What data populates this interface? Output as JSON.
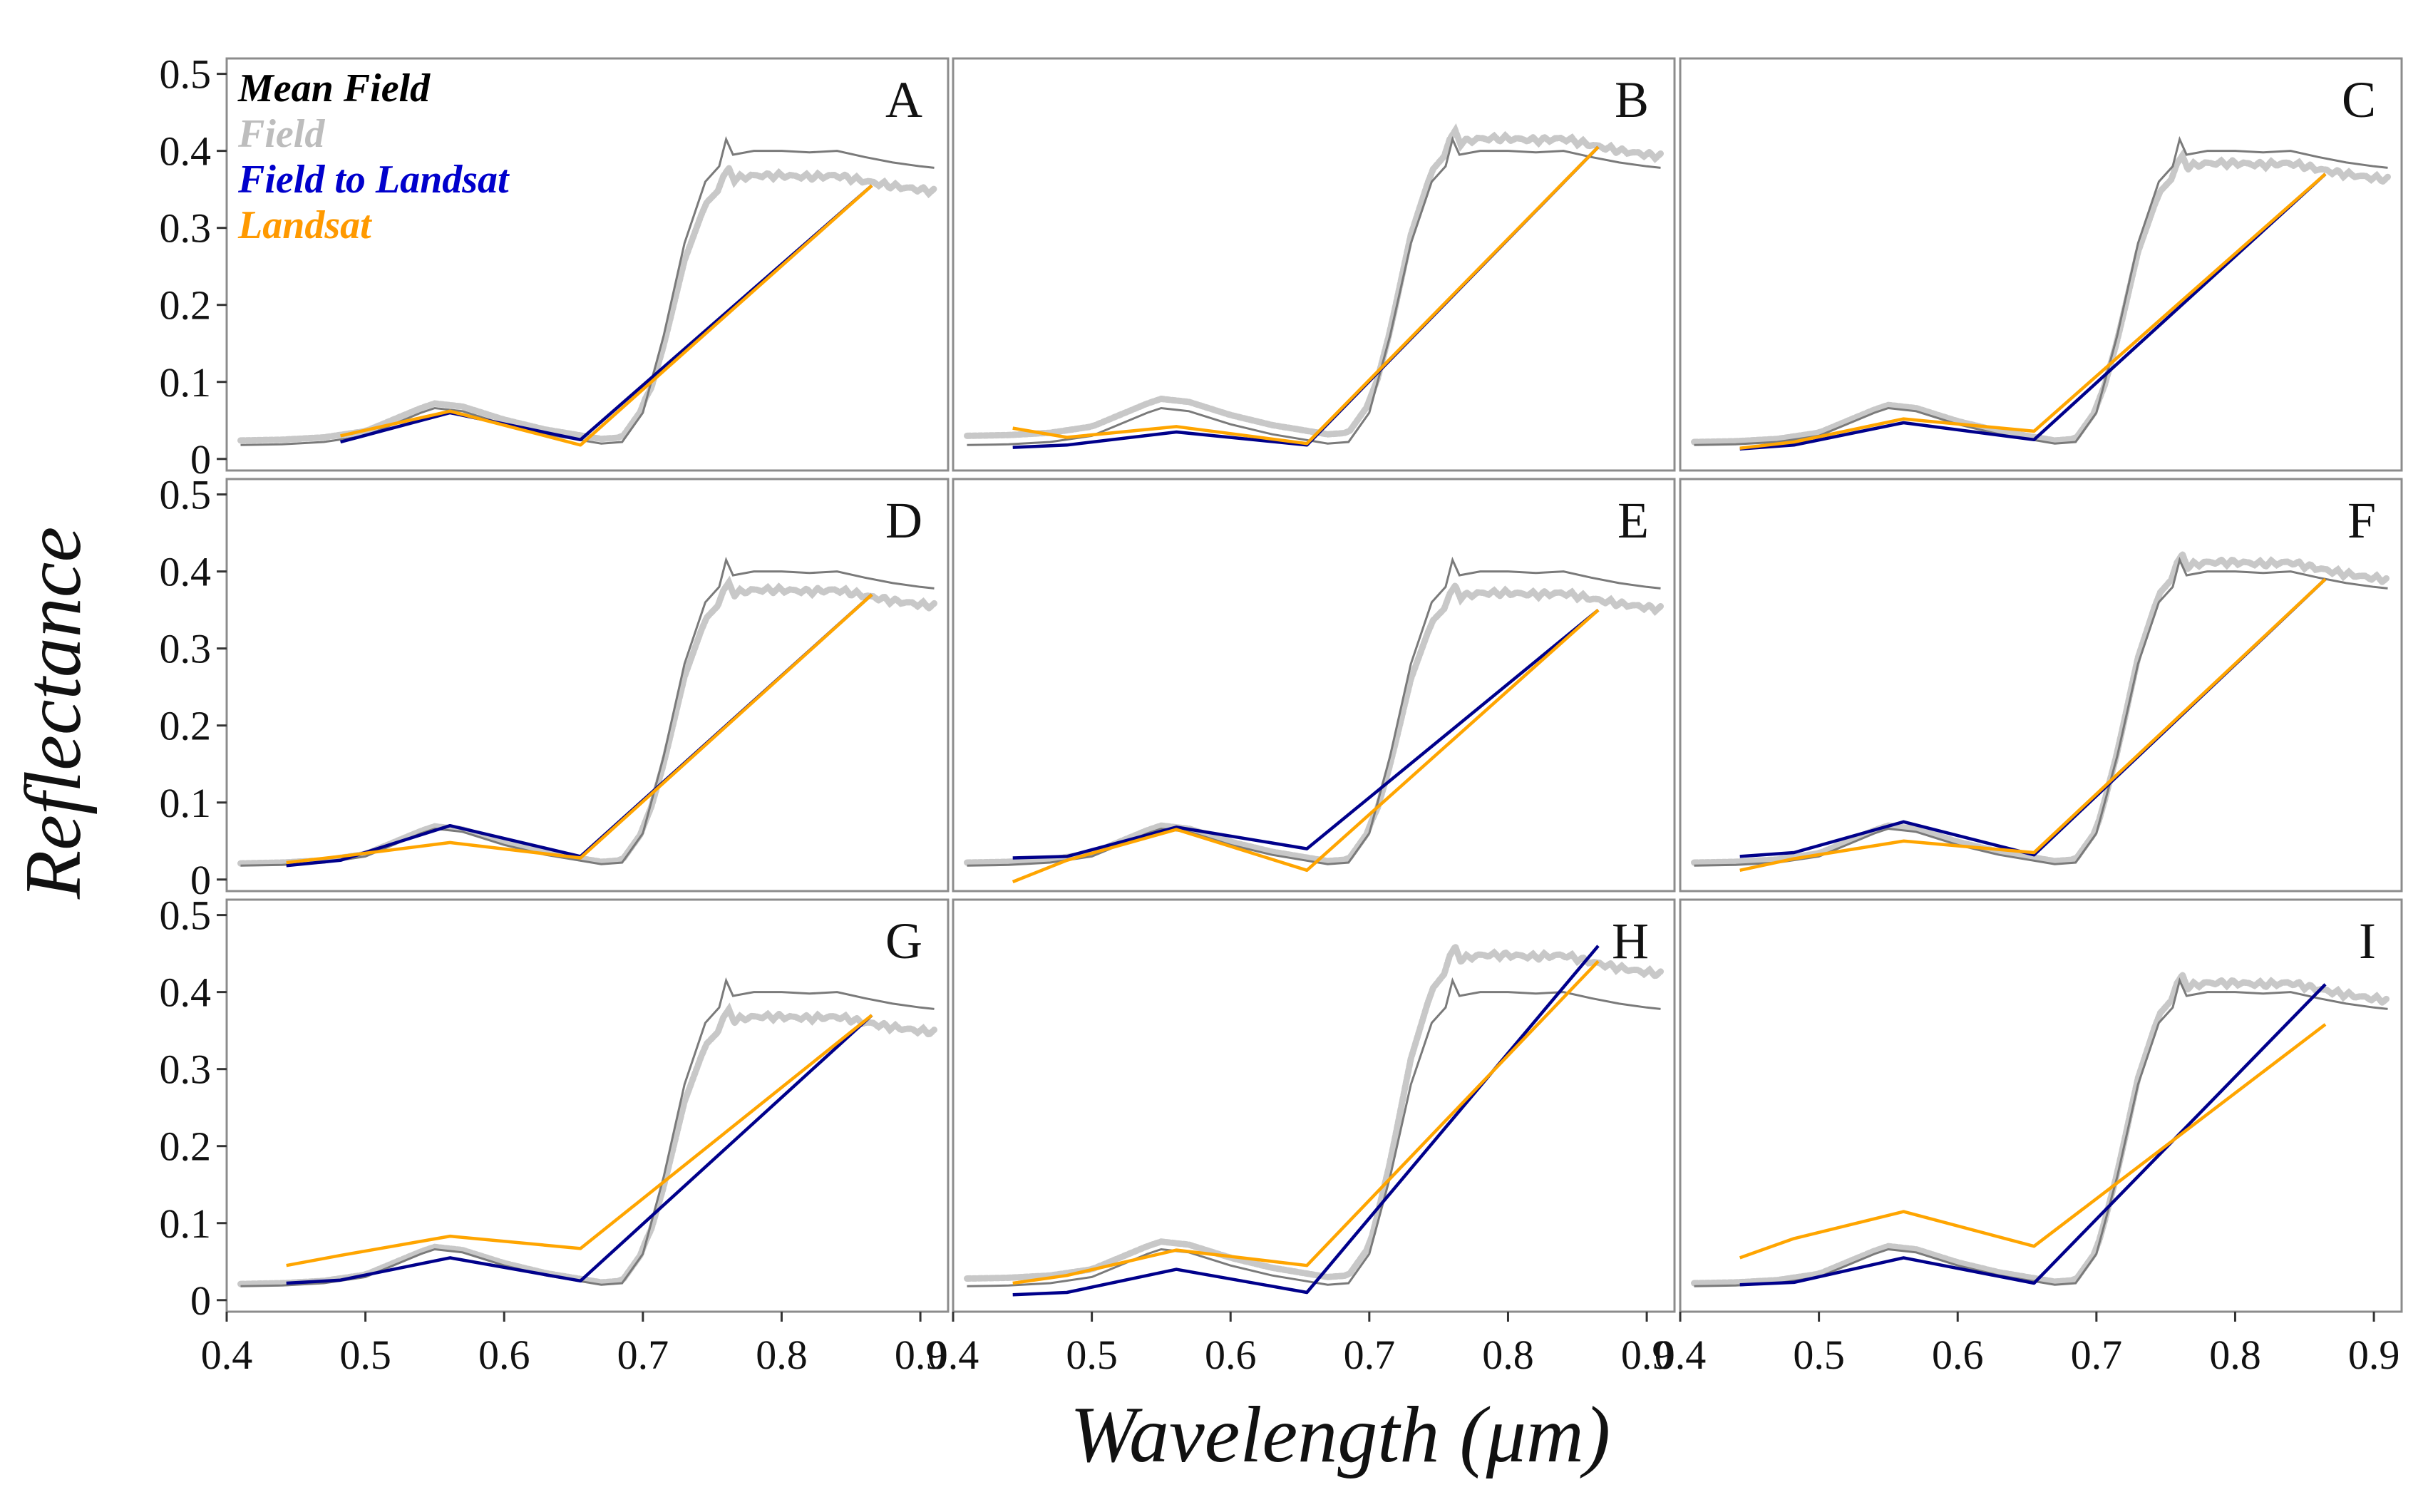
{
  "figure": {
    "xlabel": "Wavelength (μm)",
    "ylabel": "Reflectance"
  },
  "legend": [
    {
      "name": "Mean Field",
      "color": "#000000"
    },
    {
      "name": "Field",
      "color": "#bdbdbd"
    },
    {
      "name": "Field to Landsat",
      "color": "#0000cc"
    },
    {
      "name": "Landsat",
      "color": "#ff9900"
    }
  ],
  "colors": {
    "mean_field": "#7a7a7a",
    "field": "#c8c8c8",
    "field_to_landsat": "#00008b",
    "landsat": "#ffa500",
    "frame": "#8c8c8c"
  },
  "chart_data": {
    "type": "line",
    "xlim": [
      0.4,
      0.92
    ],
    "ylim": [
      -0.015,
      0.52
    ],
    "x_ticks": [
      0.4,
      0.5,
      0.6,
      0.7,
      0.8,
      0.9
    ],
    "x_tick_labels": [
      "0.4",
      "0.5",
      "0.6",
      "0.7",
      "0.8",
      "0.9"
    ],
    "y_ticks": [
      0,
      0.1,
      0.2,
      0.3,
      0.4,
      0.5
    ],
    "y_tick_labels": [
      "0",
      "0.1",
      "0.2",
      "0.3",
      "0.4",
      "0.5"
    ],
    "mean_field_spectrum": [
      [
        0.41,
        0.018
      ],
      [
        0.44,
        0.019
      ],
      [
        0.47,
        0.022
      ],
      [
        0.5,
        0.03
      ],
      [
        0.52,
        0.045
      ],
      [
        0.54,
        0.06
      ],
      [
        0.55,
        0.066
      ],
      [
        0.57,
        0.062
      ],
      [
        0.6,
        0.045
      ],
      [
        0.63,
        0.032
      ],
      [
        0.65,
        0.026
      ],
      [
        0.67,
        0.02
      ],
      [
        0.685,
        0.022
      ],
      [
        0.7,
        0.06
      ],
      [
        0.715,
        0.16
      ],
      [
        0.73,
        0.28
      ],
      [
        0.745,
        0.36
      ],
      [
        0.755,
        0.38
      ],
      [
        0.76,
        0.415
      ],
      [
        0.765,
        0.395
      ],
      [
        0.78,
        0.4
      ],
      [
        0.8,
        0.4
      ],
      [
        0.82,
        0.398
      ],
      [
        0.84,
        0.4
      ],
      [
        0.86,
        0.392
      ],
      [
        0.88,
        0.385
      ],
      [
        0.9,
        0.38
      ],
      [
        0.91,
        0.378
      ]
    ],
    "band_wavelengths": [
      0.443,
      0.482,
      0.561,
      0.655,
      0.865
    ],
    "panels": [
      {
        "label": "A",
        "field_scale": 0.92,
        "field_shift": 0.006,
        "field_to_landsat": [
          null,
          0.022,
          0.06,
          0.025,
          0.355
        ],
        "landsat": [
          null,
          0.03,
          0.062,
          0.018,
          0.355
        ]
      },
      {
        "label": "B",
        "field_scale": 1.04,
        "field_shift": 0.012,
        "field_to_landsat": [
          0.015,
          0.018,
          0.035,
          0.018,
          0.405
        ],
        "landsat": [
          0.04,
          0.028,
          0.042,
          0.02,
          0.405
        ]
      },
      {
        "label": "C",
        "field_scale": 0.96,
        "field_shift": 0.004,
        "field_to_landsat": [
          0.013,
          0.018,
          0.047,
          0.025,
          0.37
        ],
        "landsat": [
          0.014,
          0.022,
          0.052,
          0.036,
          0.37
        ]
      },
      {
        "label": "D",
        "field_scale": 0.94,
        "field_shift": 0.003,
        "field_to_landsat": [
          0.018,
          0.025,
          0.07,
          0.03,
          0.37
        ],
        "landsat": [
          0.022,
          0.03,
          0.048,
          0.028,
          0.37
        ]
      },
      {
        "label": "E",
        "field_scale": 0.93,
        "field_shift": 0.004,
        "field_to_landsat": [
          0.028,
          0.03,
          0.068,
          0.04,
          0.35
        ],
        "landsat": [
          -0.003,
          0.025,
          0.065,
          0.012,
          0.35
        ]
      },
      {
        "label": "F",
        "field_scale": 1.03,
        "field_shift": 0.004,
        "field_to_landsat": [
          0.03,
          0.035,
          0.075,
          0.032,
          0.39
        ],
        "landsat": [
          0.012,
          0.027,
          0.05,
          0.035,
          0.39
        ]
      },
      {
        "label": "G",
        "field_scale": 0.92,
        "field_shift": 0.003,
        "field_to_landsat": [
          0.022,
          0.026,
          0.055,
          0.025,
          0.37
        ],
        "landsat": [
          0.045,
          0.058,
          0.083,
          0.067,
          0.37
        ]
      },
      {
        "label": "H",
        "field_scale": 1.12,
        "field_shift": 0.01,
        "field_to_landsat": [
          0.007,
          0.01,
          0.04,
          0.01,
          0.46
        ],
        "landsat": [
          0.022,
          0.032,
          0.065,
          0.045,
          0.44
        ]
      },
      {
        "label": "I",
        "field_scale": 1.03,
        "field_shift": 0.004,
        "field_to_landsat": [
          0.02,
          0.023,
          0.055,
          0.022,
          0.41
        ],
        "landsat": [
          0.055,
          0.08,
          0.115,
          0.07,
          0.358
        ]
      }
    ]
  }
}
